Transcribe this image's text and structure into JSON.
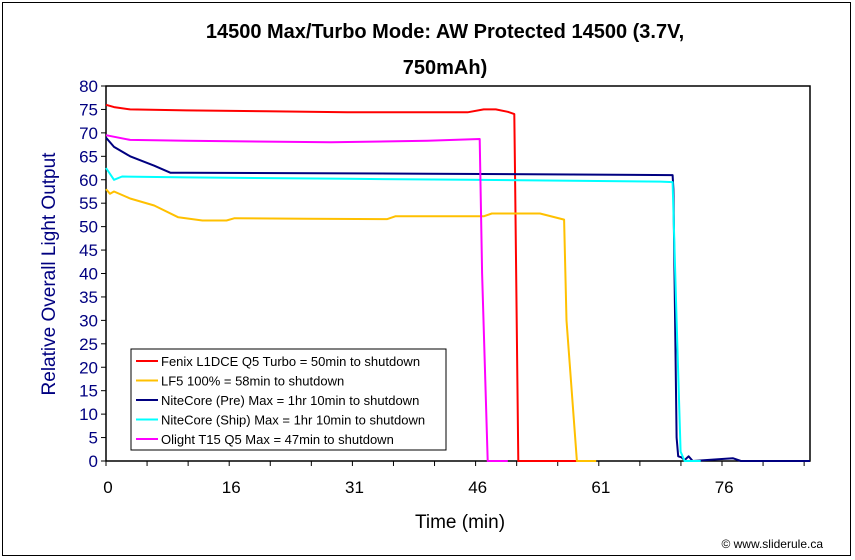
{
  "chart_data": {
    "type": "line",
    "title_lines": [
      "14500 Max/Turbo Mode: AW Protected 14500 (3.7V,",
      "750mAh)"
    ],
    "xlabel": "Time (min)",
    "ylabel": "Relative Overall Light Output",
    "xlim": [
      0,
      87.6
    ],
    "ylim": [
      0,
      80
    ],
    "yticks": [
      "0",
      "5",
      "10",
      "15",
      "20",
      "25",
      "30",
      "35",
      "40",
      "45",
      "50",
      "55",
      "60",
      "65",
      "70",
      "75",
      "80"
    ],
    "xtick_labels": [
      {
        "t": 0,
        "label": "0"
      },
      {
        "t": 15.33,
        "label": "16"
      },
      {
        "t": 30.67,
        "label": "31"
      },
      {
        "t": 46,
        "label": "46"
      },
      {
        "t": 61.33,
        "label": "61"
      },
      {
        "t": 76.67,
        "label": "76"
      }
    ],
    "minor_tick_step": 5.11,
    "grid": false,
    "legend_position": "bottom-left",
    "credit": "© www.sliderule.ca",
    "series": [
      {
        "name": "Fenix L1DCE Q5 Turbo = 50min to shutdown",
        "color": "#ff0000",
        "points": [
          [
            0,
            76
          ],
          [
            1,
            75.5
          ],
          [
            3,
            75
          ],
          [
            10,
            74.8
          ],
          [
            20,
            74.6
          ],
          [
            30,
            74.4
          ],
          [
            45,
            74.4
          ],
          [
            47,
            75
          ],
          [
            48.5,
            75
          ],
          [
            50,
            74.5
          ],
          [
            50.8,
            74
          ],
          [
            50.9,
            60
          ],
          [
            51.3,
            0
          ],
          [
            60,
            0
          ]
        ]
      },
      {
        "name": "LF5 100% = 58min to shutdown",
        "color": "#ffc000",
        "points": [
          [
            0,
            58
          ],
          [
            0.5,
            57
          ],
          [
            1,
            57.5
          ],
          [
            3,
            56
          ],
          [
            6,
            54.5
          ],
          [
            9,
            52
          ],
          [
            12,
            51.3
          ],
          [
            15,
            51.3
          ],
          [
            16,
            51.8
          ],
          [
            25,
            51.7
          ],
          [
            35,
            51.6
          ],
          [
            36,
            52.2
          ],
          [
            47,
            52.2
          ],
          [
            48,
            52.8
          ],
          [
            54,
            52.8
          ],
          [
            57,
            51.5
          ],
          [
            57.3,
            30
          ],
          [
            58.6,
            0
          ],
          [
            61,
            0
          ]
        ]
      },
      {
        "name": "NiteCore (Pre) Max = 1hr 10min to shutdown",
        "color": "#000080",
        "points": [
          [
            0,
            69
          ],
          [
            1,
            67
          ],
          [
            3,
            65
          ],
          [
            6,
            63
          ],
          [
            8,
            61.5
          ],
          [
            10,
            61.5
          ],
          [
            40,
            61.3
          ],
          [
            70.5,
            61
          ],
          [
            70.6,
            58
          ],
          [
            71,
            5
          ],
          [
            71.2,
            1
          ],
          [
            71.6,
            0.8
          ],
          [
            72,
            0.2
          ],
          [
            72.5,
            1
          ],
          [
            73,
            0
          ],
          [
            78,
            0.6
          ],
          [
            79,
            0
          ],
          [
            87.6,
            0
          ]
        ]
      },
      {
        "name": "NiteCore (Ship) Max = 1hr 10min to shutdown",
        "color": "#00ffff",
        "points": [
          [
            0,
            62.5
          ],
          [
            1,
            60
          ],
          [
            2,
            60.7
          ],
          [
            10,
            60.5
          ],
          [
            30,
            60.2
          ],
          [
            45,
            60
          ],
          [
            69,
            59.6
          ],
          [
            70.5,
            59.5
          ],
          [
            71,
            30
          ],
          [
            71.5,
            2
          ],
          [
            72,
            0
          ],
          [
            74,
            0
          ]
        ]
      },
      {
        "name": "Olight T15 Q5 Max = 47min to shutdown",
        "color": "#ff00ff",
        "points": [
          [
            0,
            69.5
          ],
          [
            3,
            68.5
          ],
          [
            10,
            68.3
          ],
          [
            28,
            68
          ],
          [
            40,
            68.3
          ],
          [
            46.5,
            68.7
          ],
          [
            46.8,
            40
          ],
          [
            47.5,
            0
          ],
          [
            50,
            0
          ]
        ]
      }
    ]
  }
}
